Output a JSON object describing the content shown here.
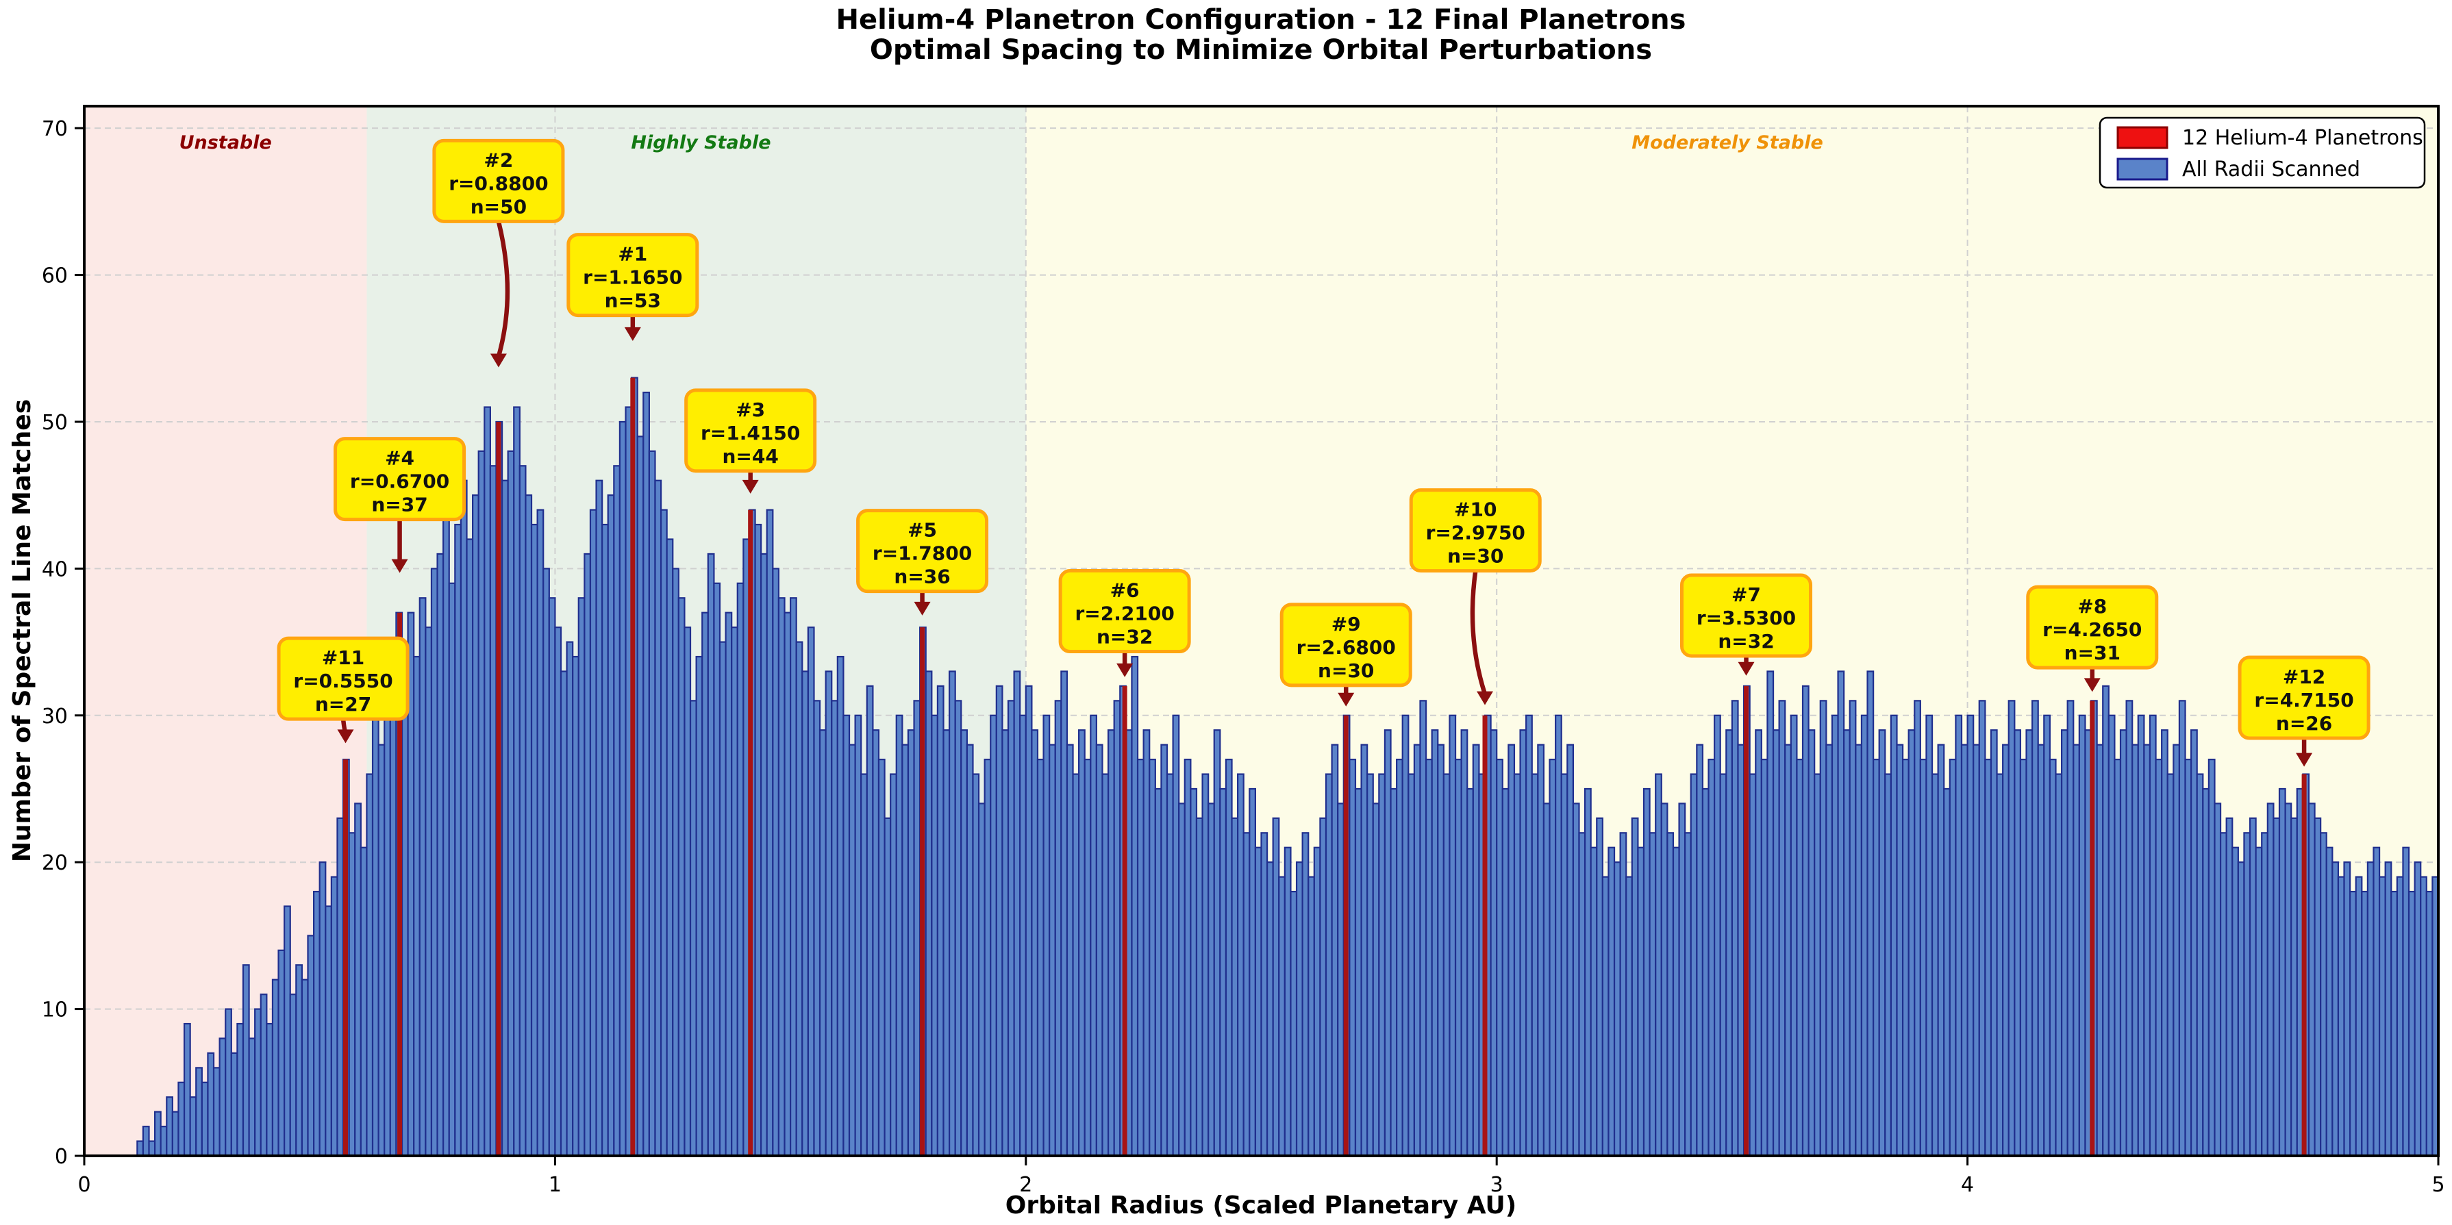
{
  "title": {
    "line1": "Helium-4 Planetron Configuration - 12 Final Planetrons",
    "line2": "Optimal Spacing to Minimize Orbital Perturbations"
  },
  "axes": {
    "xlabel": "Orbital Radius (Scaled Planetary AU)",
    "ylabel": "Number of Spectral Line Matches",
    "xticks": [
      0,
      1,
      2,
      3,
      4,
      5
    ],
    "yticks": [
      0,
      10,
      20,
      30,
      40,
      50,
      60,
      70
    ],
    "xlim": [
      0,
      5
    ],
    "ylim": [
      0,
      71.5
    ],
    "grid": "dashed"
  },
  "regions": [
    {
      "label": "Unstable",
      "from": 0.0,
      "to": 0.6,
      "fill": "#fce9e6",
      "label_color": "#8b0000",
      "label_r": 0.3
    },
    {
      "label": "Highly Stable",
      "from": 0.6,
      "to": 2.0,
      "fill": "#e8f1e8",
      "label_color": "#137a13",
      "label_r": 1.31
    },
    {
      "label": "Moderately Stable",
      "from": 2.0,
      "to": 5.0,
      "fill": "#fdfce7",
      "label_color": "#ef9209",
      "label_r": 3.49
    }
  ],
  "legend": [
    {
      "label": "12 Helium-4 Planetrons",
      "fill": "#ee1111",
      "stroke": "#8b0000"
    },
    {
      "label": "All Radii Scanned",
      "fill": "#5a83c9",
      "stroke": "#1a1a8c"
    }
  ],
  "colors": {
    "bar_fill": "#5a83c9",
    "bar_edge": "#202f8e",
    "planetron_line": "#a81414",
    "arrow": "#8b0f0f",
    "anno_box_fill": "#ffee00",
    "anno_box_edge": "#ffa510",
    "grid": "#d0d0d0",
    "spine": "#000000"
  },
  "chart_data": {
    "type": "bar",
    "title": "Helium-4 Planetron Configuration - 12 Final Planetrons / Optimal Spacing to Minimize Orbital Perturbations",
    "xlabel": "Orbital Radius (Scaled Planetary AU)",
    "ylabel": "Number of Spectral Line Matches",
    "xlim": [
      0,
      5
    ],
    "ylim": [
      0,
      71.5
    ],
    "legend_position": "upper right",
    "bin_start": 0,
    "bin_width": 0.0125,
    "values": [
      0,
      0,
      0,
      0,
      0,
      0,
      0,
      0,
      0,
      1,
      2,
      1,
      3,
      2,
      4,
      3,
      5,
      9,
      4,
      6,
      5,
      7,
      6,
      8,
      10,
      7,
      9,
      13,
      8,
      10,
      11,
      9,
      12,
      14,
      17,
      11,
      13,
      12,
      15,
      18,
      20,
      17,
      19,
      23,
      27,
      22,
      24,
      21,
      26,
      30,
      28,
      32,
      35,
      37,
      33,
      37,
      34,
      38,
      36,
      40,
      41,
      44,
      39,
      43,
      46,
      42,
      45,
      48,
      51,
      47,
      50,
      46,
      48,
      51,
      47,
      45,
      43,
      44,
      40,
      38,
      36,
      33,
      35,
      34,
      38,
      41,
      44,
      46,
      43,
      45,
      47,
      50,
      51,
      53,
      49,
      52,
      48,
      46,
      44,
      42,
      40,
      38,
      36,
      31,
      34,
      37,
      41,
      39,
      35,
      37,
      36,
      39,
      42,
      44,
      43,
      41,
      44,
      40,
      38,
      37,
      38,
      35,
      33,
      36,
      31,
      29,
      33,
      31,
      34,
      30,
      28,
      30,
      26,
      32,
      29,
      27,
      23,
      26,
      30,
      28,
      29,
      31,
      36,
      33,
      30,
      32,
      29,
      33,
      31,
      29,
      28,
      26,
      24,
      27,
      30,
      32,
      29,
      31,
      33,
      30,
      32,
      29,
      27,
      30,
      28,
      31,
      33,
      28,
      26,
      29,
      27,
      30,
      28,
      26,
      29,
      31,
      32,
      29,
      34,
      27,
      29,
      27,
      25,
      28,
      26,
      30,
      24,
      27,
      25,
      23,
      26,
      24,
      29,
      25,
      27,
      23,
      26,
      22,
      25,
      21,
      22,
      20,
      23,
      19,
      21,
      18,
      20,
      22,
      19,
      21,
      23,
      26,
      28,
      24,
      30,
      27,
      25,
      28,
      26,
      24,
      26,
      29,
      25,
      27,
      30,
      26,
      28,
      31,
      27,
      29,
      28,
      26,
      30,
      27,
      29,
      25,
      28,
      26,
      30,
      29,
      27,
      25,
      28,
      26,
      29,
      30,
      26,
      28,
      24,
      27,
      30,
      26,
      28,
      24,
      22,
      25,
      21,
      23,
      19,
      21,
      20,
      22,
      19,
      23,
      21,
      25,
      22,
      26,
      24,
      22,
      21,
      24,
      22,
      26,
      28,
      25,
      27,
      30,
      26,
      29,
      31,
      28,
      32,
      26,
      29,
      27,
      33,
      29,
      31,
      28,
      30,
      27,
      32,
      29,
      26,
      31,
      28,
      30,
      33,
      29,
      31,
      28,
      30,
      33,
      27,
      29,
      26,
      30,
      28,
      27,
      29,
      31,
      27,
      30,
      26,
      28,
      25,
      27,
      30,
      28,
      30,
      28,
      31,
      27,
      29,
      26,
      28,
      31,
      29,
      27,
      29,
      31,
      28,
      30,
      27,
      26,
      29,
      31,
      28,
      30,
      29,
      31,
      28,
      32,
      30,
      27,
      29,
      31,
      28,
      30,
      28,
      30,
      27,
      29,
      26,
      28,
      31,
      27,
      29,
      26,
      25,
      27,
      24,
      22,
      23,
      21,
      20,
      22,
      23,
      21,
      22,
      24,
      23,
      25,
      24,
      23,
      25,
      26,
      24,
      23,
      22,
      21,
      20,
      19,
      20,
      18,
      19,
      18,
      20,
      21,
      19,
      20,
      18,
      19,
      21,
      18,
      20,
      19,
      18,
      19
    ],
    "planetrons": [
      {
        "id": "#1",
        "r": 1.165,
        "n": 53,
        "r_label": "r=1.1650",
        "n_label": "n=53",
        "box_r": 1.165,
        "box_v": 60.0,
        "tip_v": 55.6,
        "curve": 0
      },
      {
        "id": "#2",
        "r": 0.88,
        "n": 50,
        "r_label": "r=0.8800",
        "n_label": "n=50",
        "box_r": 0.88,
        "box_v": 66.4,
        "tip_v": 53.8,
        "curve": 26
      },
      {
        "id": "#3",
        "r": 1.415,
        "n": 44,
        "r_label": "r=1.4150",
        "n_label": "n=44",
        "box_r": 1.415,
        "box_v": 49.4,
        "tip_v": 45.2,
        "curve": 0
      },
      {
        "id": "#4",
        "r": 0.67,
        "n": 37,
        "r_label": "r=0.6700",
        "n_label": "n=37",
        "box_r": 0.67,
        "box_v": 46.1,
        "tip_v": 39.8,
        "curve": 0
      },
      {
        "id": "#5",
        "r": 1.78,
        "n": 36,
        "r_label": "r=1.7800",
        "n_label": "n=36",
        "box_r": 1.78,
        "box_v": 41.2,
        "tip_v": 36.9,
        "curve": 0
      },
      {
        "id": "#6",
        "r": 2.21,
        "n": 32,
        "r_label": "r=2.2100",
        "n_label": "n=32",
        "box_r": 2.21,
        "box_v": 37.1,
        "tip_v": 32.7,
        "curve": 0
      },
      {
        "id": "#7",
        "r": 3.53,
        "n": 32,
        "r_label": "r=3.5300",
        "n_label": "n=32",
        "box_r": 3.53,
        "box_v": 36.8,
        "tip_v": 32.8,
        "curve": 0
      },
      {
        "id": "#8",
        "r": 4.265,
        "n": 31,
        "r_label": "r=4.2650",
        "n_label": "n=31",
        "box_r": 4.265,
        "box_v": 36.0,
        "tip_v": 31.7,
        "curve": 0
      },
      {
        "id": "#9",
        "r": 2.68,
        "n": 30,
        "r_label": "r=2.6800",
        "n_label": "n=30",
        "box_r": 2.68,
        "box_v": 34.8,
        "tip_v": 30.7,
        "curve": 0
      },
      {
        "id": "#10",
        "r": 2.975,
        "n": 30,
        "r_label": "r=2.9750",
        "n_label": "n=30",
        "box_r": 2.955,
        "box_v": 42.6,
        "tip_v": 30.8,
        "curve": -20
      },
      {
        "id": "#11",
        "r": 0.555,
        "n": 27,
        "r_label": "r=0.5550",
        "n_label": "n=27",
        "box_r": 0.55,
        "box_v": 32.5,
        "tip_v": 28.2,
        "curve": 0
      },
      {
        "id": "#12",
        "r": 4.715,
        "n": 26,
        "r_label": "r=4.7150",
        "n_label": "n=26",
        "box_r": 4.715,
        "box_v": 31.2,
        "tip_v": 26.6,
        "curve": 0
      }
    ]
  }
}
